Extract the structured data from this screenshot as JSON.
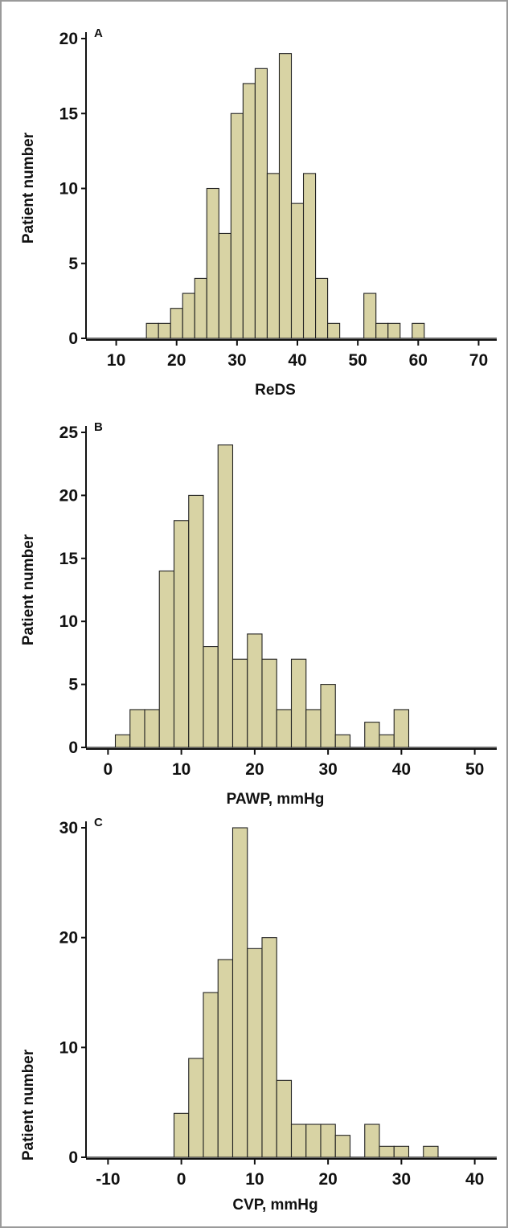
{
  "chart_data": [
    {
      "type": "bar",
      "panel": "A",
      "xlabel": "ReDS",
      "ylabel": "Patient number",
      "xlim": [
        5,
        73
      ],
      "ylim": [
        0,
        20
      ],
      "xticks": [
        10,
        20,
        30,
        40,
        50,
        60,
        70
      ],
      "yticks": [
        0,
        5,
        10,
        15,
        20
      ],
      "bin_width": 2,
      "bin_starts": [
        15,
        17,
        19,
        21,
        23,
        25,
        27,
        29,
        31,
        33,
        35,
        37,
        39,
        41,
        43,
        45,
        47,
        49,
        51,
        53,
        55,
        57,
        59
      ],
      "values": [
        1,
        1,
        2,
        3,
        4,
        10,
        7,
        15,
        17,
        18,
        11,
        19,
        9,
        11,
        4,
        1,
        0,
        0,
        3,
        1,
        1,
        0,
        1
      ],
      "bar_color": "#d8d3a4",
      "grid": false
    },
    {
      "type": "bar",
      "panel": "B",
      "xlabel": "PAWP, mmHg",
      "ylabel": "Patient number",
      "xlim": [
        -3,
        53
      ],
      "ylim": [
        0,
        25
      ],
      "xticks": [
        0,
        10,
        20,
        30,
        40,
        50
      ],
      "yticks": [
        0,
        5,
        10,
        15,
        20,
        25
      ],
      "bin_width": 2,
      "bin_starts": [
        1,
        3,
        5,
        7,
        9,
        11,
        13,
        15,
        17,
        19,
        21,
        23,
        25,
        27,
        29,
        31,
        33,
        35,
        37,
        39
      ],
      "values": [
        1,
        3,
        3,
        14,
        18,
        20,
        8,
        24,
        7,
        9,
        7,
        3,
        7,
        3,
        5,
        1,
        0,
        2,
        1,
        3
      ],
      "bar_color": "#d8d3a4",
      "grid": false
    },
    {
      "type": "bar",
      "panel": "C",
      "xlabel": "CVP, mmHg",
      "ylabel": "Patient number",
      "xlim": [
        -13,
        43
      ],
      "ylim": [
        0,
        30
      ],
      "xticks": [
        -10,
        0,
        10,
        20,
        30,
        40
      ],
      "yticks": [
        0,
        10,
        20,
        30
      ],
      "bin_width": 2,
      "bin_starts": [
        -1,
        1,
        3,
        5,
        7,
        9,
        11,
        13,
        15,
        17,
        19,
        21,
        23,
        25,
        27,
        29,
        31,
        33
      ],
      "values": [
        4,
        9,
        15,
        18,
        30,
        19,
        20,
        7,
        3,
        3,
        3,
        2,
        0,
        3,
        1,
        1,
        0,
        1
      ],
      "bar_color": "#d8d3a4",
      "grid": false
    }
  ]
}
